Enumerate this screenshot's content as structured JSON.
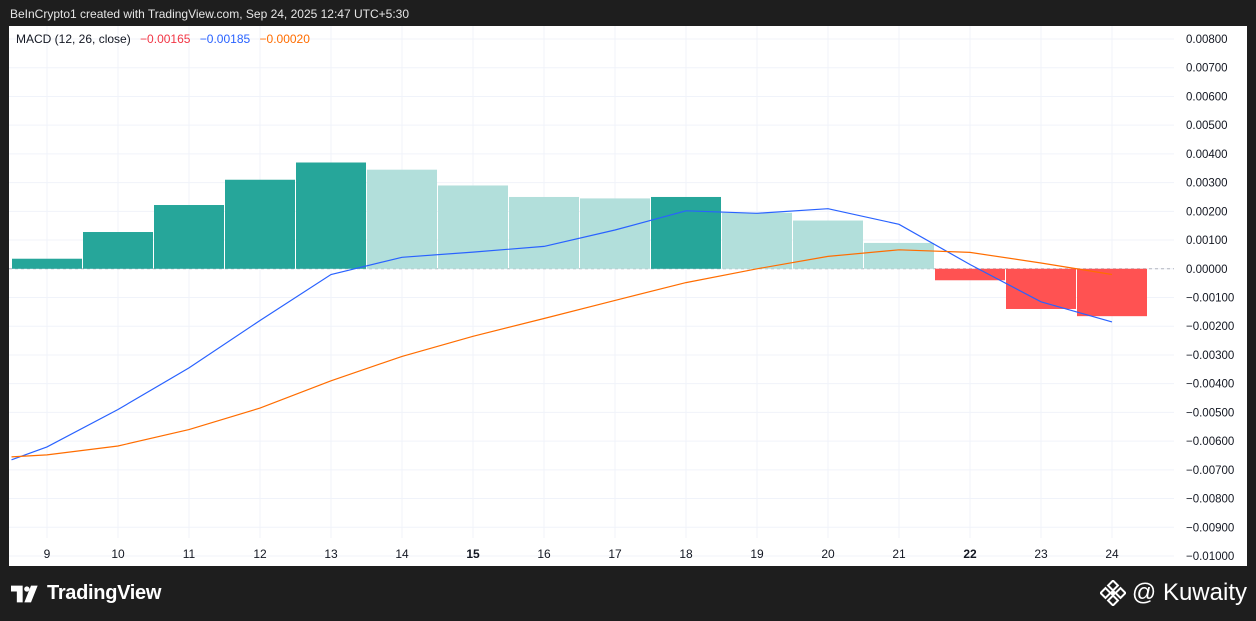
{
  "header": {
    "text": "BeInCrypto1 created with TradingView.com, Sep 24, 2025 12:47 UTC+5:30"
  },
  "legend": {
    "label": "MACD (12, 26, close)",
    "histogram_value": "−0.00165",
    "macd_value": "−0.00185",
    "signal_value": "−0.00020"
  },
  "footer": {
    "logo_text": "TradingView",
    "watermark_text": "@ Kuwaity"
  },
  "colors": {
    "hist_up_strong": "#26a69a",
    "hist_up_weak": "#b2dfdb",
    "hist_down_strong": "#ff5252",
    "macd_line": "#2962ff",
    "signal_line": "#ff6d00",
    "grid": "#f0f3fa"
  },
  "chart_data": {
    "type": "bar",
    "title": "",
    "xlabel": "",
    "ylabel": "",
    "x": [
      9,
      10,
      11,
      12,
      13,
      14,
      15,
      16,
      17,
      18,
      19,
      20,
      21,
      22,
      23,
      24
    ],
    "x_tick_labels": [
      "9",
      "10",
      "11",
      "12",
      "13",
      "14",
      "15",
      "16",
      "17",
      "18",
      "19",
      "20",
      "21",
      "22",
      "23",
      "24"
    ],
    "bold_ticks": [
      "15",
      "22"
    ],
    "ylim": [
      -0.01,
      0.008
    ],
    "y_ticks": [
      "0.00800",
      "0.00700",
      "0.00600",
      "0.00500",
      "0.00400",
      "0.00300",
      "0.00200",
      "0.00100",
      "0.00000",
      "−0.00100",
      "−0.00200",
      "−0.00300",
      "−0.00400",
      "−0.00500",
      "−0.00600",
      "−0.00700",
      "−0.00800",
      "−0.00900",
      "−0.01000"
    ],
    "y_tick_values": [
      0.008,
      0.007,
      0.006,
      0.005,
      0.004,
      0.003,
      0.002,
      0.001,
      0,
      -0.001,
      -0.002,
      -0.003,
      -0.004,
      -0.005,
      -0.006,
      -0.007,
      -0.008,
      -0.009,
      -0.01
    ],
    "grid": true,
    "series": [
      {
        "type": "bar",
        "values": [
          0.00035,
          0.00128,
          0.00222,
          0.0031,
          0.0037,
          0.00345,
          0.0029,
          0.0025,
          0.00245,
          0.0025,
          0.00195,
          0.00168,
          0.0009,
          -0.0004,
          -0.0014,
          -0.00165
        ],
        "colors": [
          "#26a69a",
          "#26a69a",
          "#26a69a",
          "#26a69a",
          "#26a69a",
          "#b2dfdb",
          "#b2dfdb",
          "#b2dfdb",
          "#b2dfdb",
          "#26a69a",
          "#b2dfdb",
          "#b2dfdb",
          "#b2dfdb",
          "#ff5252",
          "#ff5252",
          "#ff5252"
        ]
      },
      {
        "type": "line",
        "color": "#2962ff",
        "x": [
          8.5,
          9,
          10,
          11,
          12,
          13,
          14,
          15,
          16,
          17,
          18,
          19,
          20,
          21,
          22,
          23,
          24
        ],
        "values": [
          -0.00665,
          -0.0062,
          -0.0049,
          -0.00345,
          -0.0018,
          -0.0002,
          0.0004,
          0.00058,
          0.00078,
          0.00135,
          0.00202,
          0.00193,
          0.00209,
          0.00155,
          0.00015,
          -0.00115,
          -0.00185
        ]
      },
      {
        "type": "line",
        "color": "#ff6d00",
        "x": [
          8.5,
          9,
          10,
          11,
          12,
          13,
          14,
          15,
          16,
          17,
          18,
          19,
          20,
          21,
          22,
          23,
          24
        ],
        "values": [
          -0.00655,
          -0.00648,
          -0.00617,
          -0.0056,
          -0.00485,
          -0.0039,
          -0.00305,
          -0.00235,
          -0.00173,
          -0.0011,
          -0.00048,
          0.0,
          0.00043,
          0.00066,
          0.00057,
          0.0002,
          -0.0002
        ]
      }
    ]
  }
}
